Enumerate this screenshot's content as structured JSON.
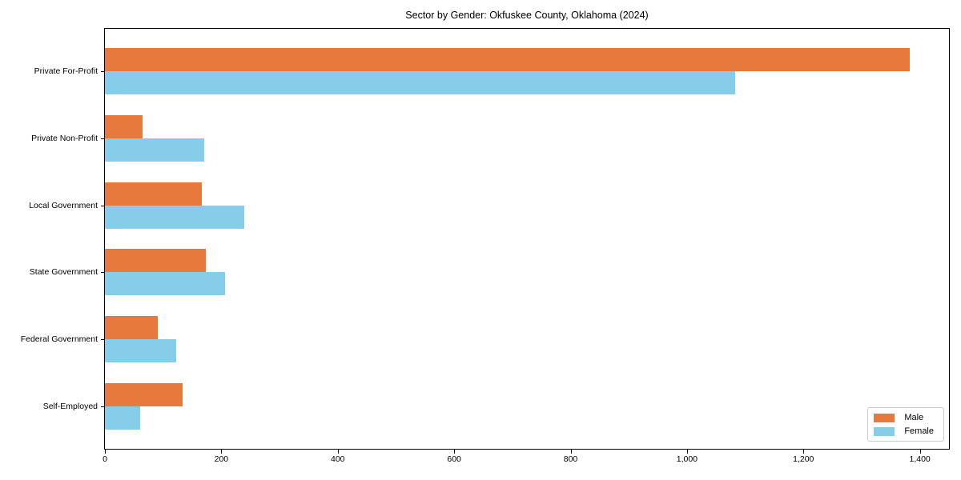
{
  "title": "Sector by Gender: Okfuskee County, Oklahoma (2024)",
  "chart_data": {
    "type": "bar",
    "orientation": "horizontal",
    "title": "Sector by Gender: Okfuskee County, Oklahoma (2024)",
    "xlabel": "",
    "ylabel": "",
    "categories": [
      "Private For-Profit",
      "Private Non-Profit",
      "Local Government",
      "State Government",
      "Federal Government",
      "Self-Employed"
    ],
    "series": [
      {
        "name": "Male",
        "color": "#e8793d",
        "values": [
          1383,
          64,
          166,
          173,
          91,
          133
        ]
      },
      {
        "name": "Female",
        "color": "#85cde8",
        "values": [
          1082,
          170,
          239,
          206,
          122,
          60
        ]
      }
    ],
    "xlim": [
      0,
      1450
    ],
    "x_ticks": [
      0,
      200,
      400,
      600,
      800,
      1000,
      1200,
      1400
    ],
    "x_tick_labels": [
      "0",
      "200",
      "400",
      "600",
      "800",
      "1,000",
      "1,200",
      "1,400"
    ],
    "grid": false,
    "legend_position": "lower right",
    "frame": true,
    "background_color": "#ffffff",
    "text_color": "#000000"
  }
}
